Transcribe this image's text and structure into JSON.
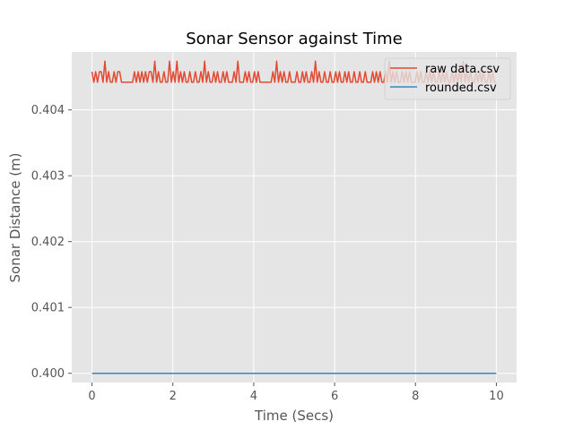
{
  "chart_data": {
    "type": "line",
    "title": "Sonar Sensor against Time",
    "xlabel": "Time (Secs)",
    "ylabel": "Sonar Distance (m)",
    "xlim": [
      -0.5,
      10.5
    ],
    "ylim": [
      0.39986,
      0.40488
    ],
    "xticks": [
      0,
      2,
      4,
      6,
      8,
      10
    ],
    "xtick_labels": [
      "0",
      "2",
      "4",
      "6",
      "8",
      "10"
    ],
    "yticks": [
      0.4,
      0.401,
      0.402,
      0.403,
      0.404
    ],
    "ytick_labels": [
      "0.400",
      "0.401",
      "0.402",
      "0.403",
      "0.404"
    ],
    "grid": true,
    "legend": "top-right",
    "background": "#e5e5e5",
    "series": [
      {
        "name": "raw data.csv",
        "color": "#e24a33",
        "x_start": 0,
        "x_end": 10,
        "levels": [
          0.40442,
          0.40458,
          0.40474
        ],
        "values": [
          0.40458,
          0.40442,
          0.40458,
          0.40442,
          0.40458,
          0.40458,
          0.40442,
          0.40474,
          0.40442,
          0.40458,
          0.40442,
          0.40442,
          0.40458,
          0.40442,
          0.40458,
          0.40458,
          0.40442,
          0.40442,
          0.40442,
          0.40442,
          0.40442,
          0.40442,
          0.40442,
          0.40458,
          0.40442,
          0.40458,
          0.40442,
          0.40458,
          0.40442,
          0.40458,
          0.40442,
          0.40458,
          0.40458,
          0.40442,
          0.40474,
          0.40442,
          0.40458,
          0.40442,
          0.40442,
          0.40458,
          0.40442,
          0.40442,
          0.40474,
          0.40442,
          0.40458,
          0.40442,
          0.40474,
          0.40442,
          0.40458,
          0.40442,
          0.40458,
          0.40442,
          0.40442,
          0.40458,
          0.40442,
          0.40442,
          0.40458,
          0.40442,
          0.40442,
          0.40458,
          0.40442,
          0.40474,
          0.40442,
          0.40458,
          0.40442,
          0.40442,
          0.40458,
          0.40442,
          0.40458,
          0.40442,
          0.40442,
          0.40458,
          0.40442,
          0.40458,
          0.40442,
          0.40442,
          0.40442,
          0.40458,
          0.40442,
          0.40474,
          0.40442,
          0.40442,
          0.40442,
          0.40458,
          0.40442,
          0.40458,
          0.40442,
          0.40442,
          0.40458,
          0.40442,
          0.40458,
          0.40442,
          0.40442,
          0.40442,
          0.40442,
          0.40442,
          0.40442,
          0.40442,
          0.40458,
          0.40442,
          0.40474,
          0.40442,
          0.40458,
          0.40442,
          0.40458,
          0.40442,
          0.40442,
          0.40458,
          0.40442,
          0.40442,
          0.40442,
          0.40458,
          0.40442,
          0.40442,
          0.40458,
          0.40442,
          0.40458,
          0.40442,
          0.40442,
          0.40458,
          0.40442,
          0.40474,
          0.40442,
          0.40458,
          0.40442,
          0.40442,
          0.40458,
          0.40442,
          0.40442,
          0.40458,
          0.40442,
          0.40442,
          0.40458,
          0.40442,
          0.40458,
          0.40442,
          0.40442,
          0.40458,
          0.40442,
          0.40458,
          0.40442,
          0.40442,
          0.40458,
          0.40442,
          0.40442,
          0.40458,
          0.40442,
          0.40442,
          0.40458,
          0.40442,
          0.40442,
          0.40442,
          0.40458,
          0.40442,
          0.40458,
          0.40442,
          0.40458,
          0.40442,
          0.40442,
          0.40458,
          0.40442,
          0.40474,
          0.40442,
          0.40458,
          0.40442,
          0.40458,
          0.40442,
          0.40442,
          0.40458,
          0.40442,
          0.40458,
          0.40442,
          0.40458,
          0.40442,
          0.40442,
          0.40442,
          0.40458,
          0.40442,
          0.40458,
          0.40442,
          0.40442,
          0.40458,
          0.40442,
          0.40458,
          0.40442,
          0.40458,
          0.40442,
          0.40442,
          0.40458,
          0.40442,
          0.40458,
          0.40442,
          0.40458,
          0.40442,
          0.40442,
          0.40458,
          0.40442,
          0.40458,
          0.40442,
          0.40458,
          0.40442,
          0.40474,
          0.40442,
          0.40458,
          0.40442,
          0.40458,
          0.40442,
          0.40442,
          0.40458,
          0.40442,
          0.40458,
          0.40442,
          0.40458,
          0.40442,
          0.40442,
          0.40458,
          0.40442,
          0.40458,
          0.40442,
          0.40442
        ]
      },
      {
        "name": "rounded.csv",
        "color": "#348abd",
        "x": [
          0,
          10
        ],
        "values": [
          0.4,
          0.4
        ]
      }
    ]
  }
}
